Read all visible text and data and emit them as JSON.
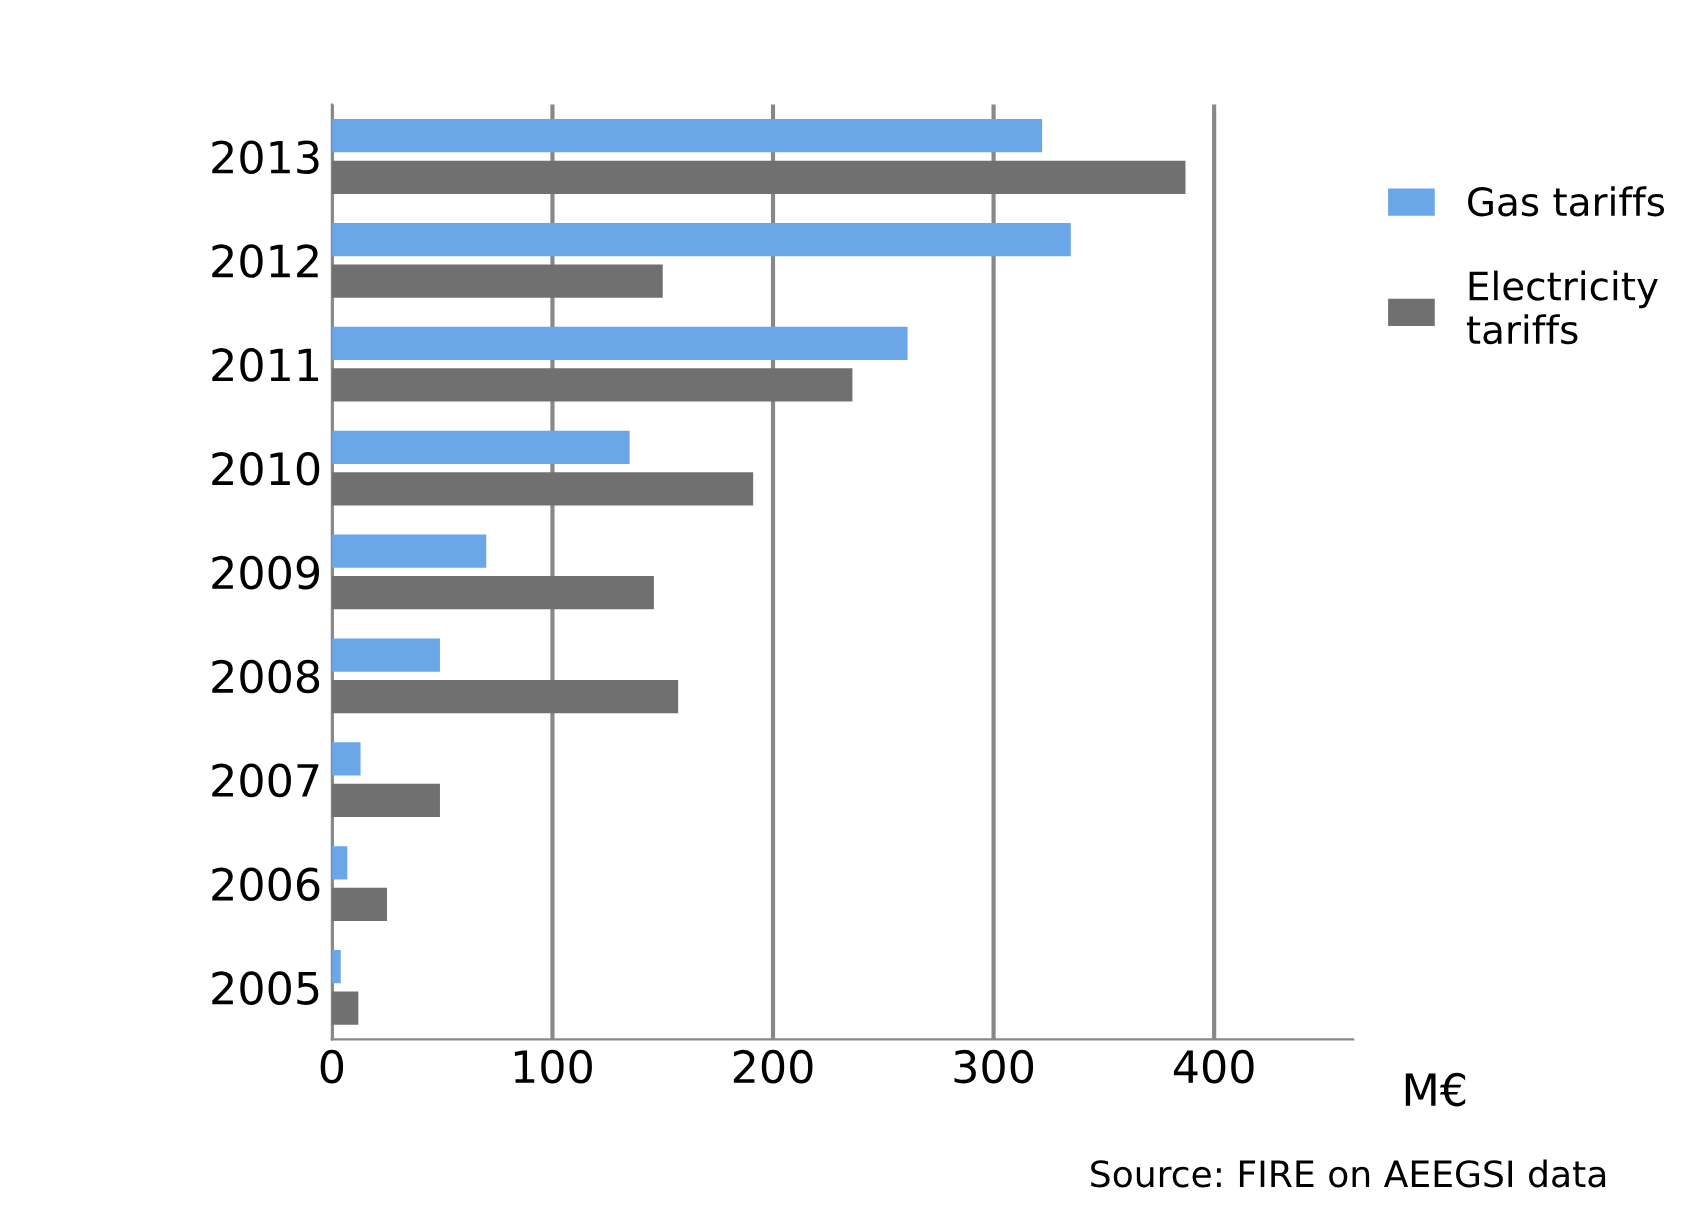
{
  "chart_data": {
    "type": "bar",
    "orientation": "horizontal",
    "categories": [
      "2013",
      "2012",
      "2011",
      "2010",
      "2009",
      "2008",
      "2007",
      "2006",
      "2005"
    ],
    "series": [
      {
        "name": "Gas tariffs",
        "color": "#6aa6e8",
        "values": [
          322,
          335,
          261,
          135,
          70,
          49,
          13,
          7,
          4
        ]
      },
      {
        "name": "Electricity tariffs",
        "color": "#707070",
        "values": [
          387,
          150,
          236,
          191,
          146,
          157,
          49,
          25,
          12
        ]
      }
    ],
    "xlim": [
      0,
      463
    ],
    "xticks": [
      0,
      100,
      200,
      300,
      400
    ],
    "xlabel": "M€",
    "grid": "x",
    "legend": "right",
    "annotations": [
      "Source: FIRE on AEEGSI data"
    ]
  }
}
